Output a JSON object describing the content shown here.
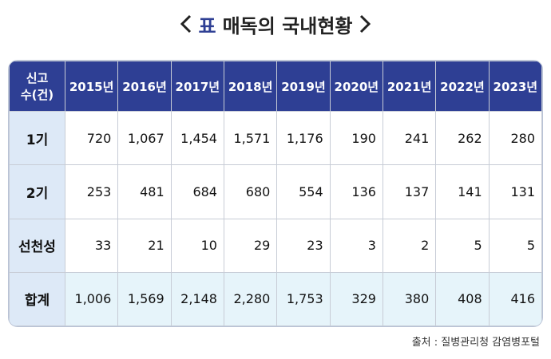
{
  "title": {
    "label": "표",
    "text": "매독의 국내현황"
  },
  "table": {
    "corner": [
      "신고",
      "수(건)"
    ],
    "columns": [
      "2015년",
      "2016년",
      "2017년",
      "2018년",
      "2019년",
      "2020년",
      "2021년",
      "2022년",
      "2023년"
    ],
    "rows": [
      {
        "label": "1기",
        "cells": [
          "720",
          "1,067",
          "1,454",
          "1,571",
          "1,176",
          "190",
          "241",
          "262",
          "280"
        ]
      },
      {
        "label": "2기",
        "cells": [
          "253",
          "481",
          "684",
          "680",
          "554",
          "136",
          "137",
          "141",
          "131"
        ]
      },
      {
        "label": "선천성",
        "cells": [
          "33",
          "21",
          "10",
          "29",
          "23",
          "3",
          "2",
          "5",
          "5"
        ]
      },
      {
        "label": "합계",
        "cells": [
          "1,006",
          "1,569",
          "2,148",
          "2,280",
          "1,753",
          "329",
          "380",
          "408",
          "416"
        ]
      }
    ]
  },
  "source": "출처 : 질병관리청 감염병포털"
}
